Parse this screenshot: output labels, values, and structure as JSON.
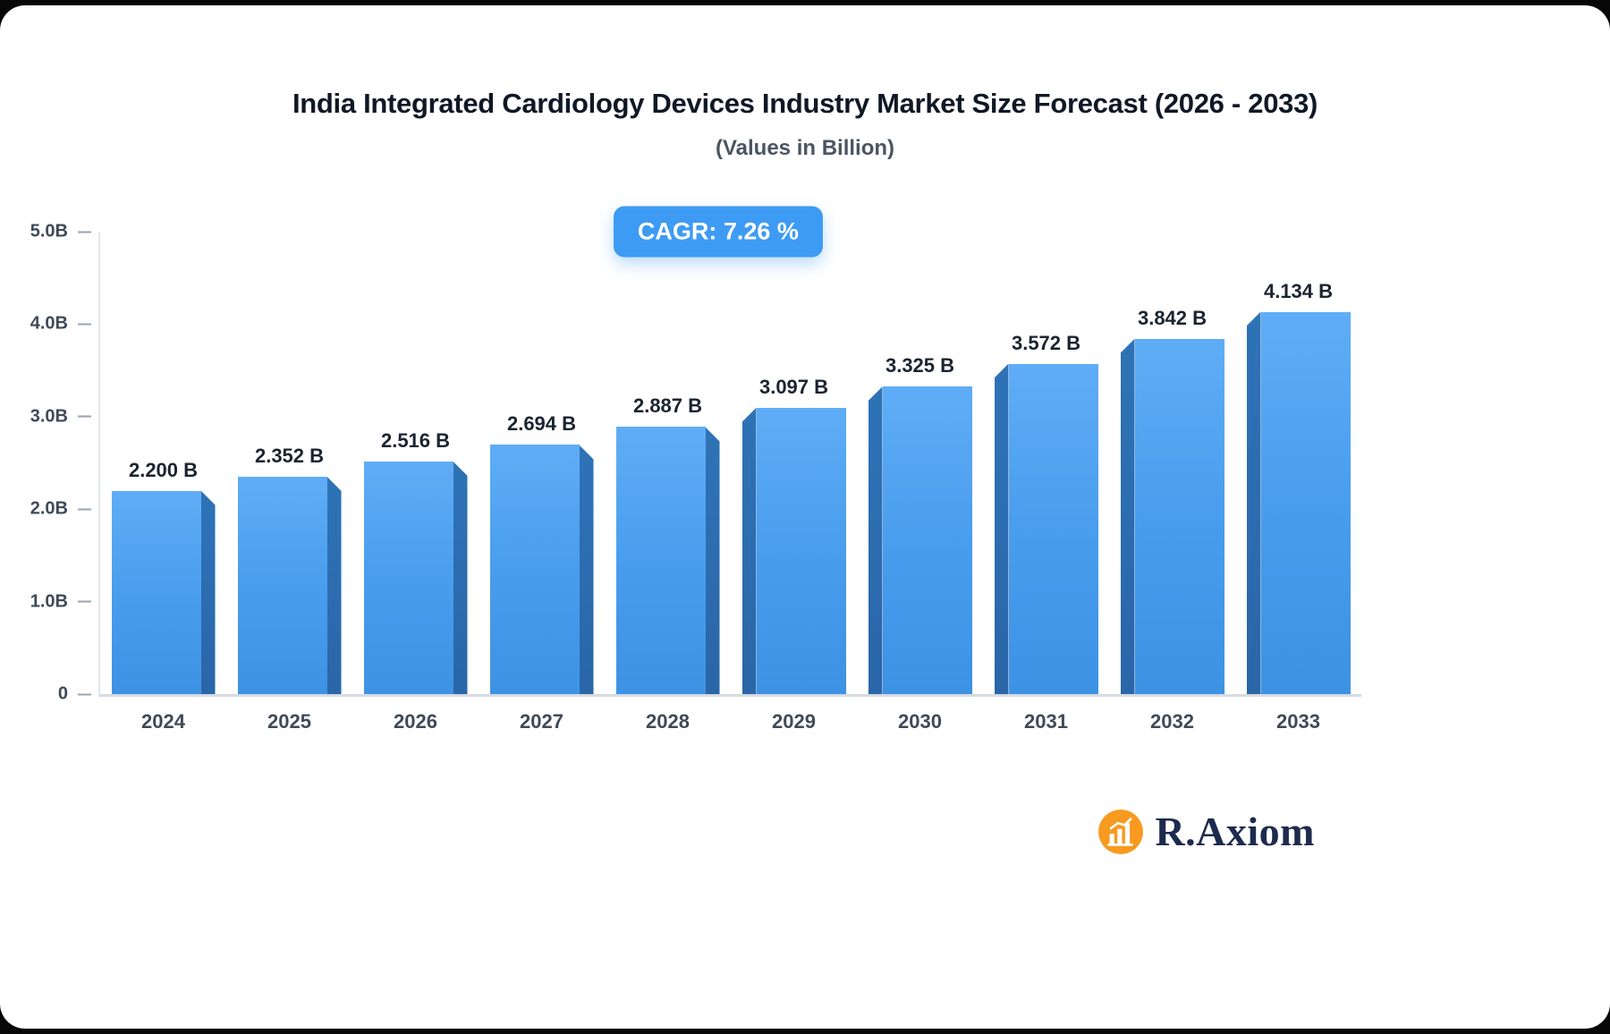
{
  "header": {
    "title": "India Integrated Cardiology Devices Industry Market Size Forecast (2026 - 2033)",
    "subtitle": "(Values in Billion)"
  },
  "badge": {
    "label": "CAGR: 7.26 %"
  },
  "chart_data": {
    "type": "bar",
    "title": "India Integrated Cardiology Devices Industry Market Size Forecast (2026 - 2033)",
    "subtitle": "(Values in Billion)",
    "categories": [
      "2024",
      "2025",
      "2026",
      "2027",
      "2028",
      "2029",
      "2030",
      "2031",
      "2032",
      "2033"
    ],
    "values": [
      2.2,
      2.352,
      2.516,
      2.694,
      2.887,
      3.097,
      3.325,
      3.572,
      3.842,
      4.134
    ],
    "value_labels": [
      "2.200 B",
      "2.352 B",
      "2.516 B",
      "2.694 B",
      "2.887 B",
      "3.097 B",
      "3.325 B",
      "3.572 B",
      "3.842 B",
      "4.134 B"
    ],
    "xlabel": "",
    "ylabel": "",
    "ylim": [
      0,
      5
    ],
    "yticks": [
      {
        "label": "5.0B",
        "value": 5
      },
      {
        "label": "4.0B",
        "value": 4
      },
      {
        "label": "3.0B",
        "value": 3
      },
      {
        "label": "2.0B",
        "value": 2
      },
      {
        "label": "1.0B",
        "value": 1
      },
      {
        "label": "0",
        "value": 0
      }
    ],
    "grid": false,
    "legend": null,
    "annotations": [
      "CAGR: 7.26 %"
    ],
    "colors": {
      "bar_face_top": "#5fadf6",
      "bar_face_bottom": "#3e92e4",
      "bar_side": "#2c70b5",
      "badge_bg": "#3e9bf3",
      "axis": "#d7dce2"
    }
  },
  "logo": {
    "text": "R.Axiom",
    "icon": "bar-chart-icon",
    "icon_color": "#f79a1f",
    "text_color": "#1d2b4d"
  }
}
